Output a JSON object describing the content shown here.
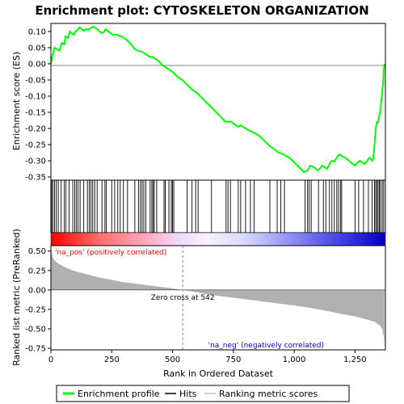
{
  "chart_data": {
    "type": "line",
    "title": "Enrichment plot: CYTOSKELETON ORGANIZATION",
    "xlabel": "Rank in Ordered Dataset",
    "ylabel_top": "Enrichment score (ES)",
    "ylabel_bottom": "Ranked list metric (PreRanked)",
    "x_range": [
      0,
      1375
    ],
    "x_ticks": [
      0,
      250,
      500,
      750,
      1000,
      1250
    ],
    "x_tick_labels": [
      "0",
      "250",
      "500",
      "750",
      "1,000",
      "1,250"
    ],
    "es_ylim": [
      -0.36,
      0.125
    ],
    "es_ticks": [
      0.1,
      0.05,
      0.0,
      -0.05,
      -0.1,
      -0.15,
      -0.2,
      -0.25,
      -0.3,
      -0.35
    ],
    "es_tick_labels": [
      "0.10",
      "0.05",
      "0.00",
      "-0.05",
      "-0.10",
      "-0.15",
      "-0.20",
      "-0.25",
      "-0.30",
      "-0.35"
    ],
    "metric_ylim": [
      -0.77,
      0.57
    ],
    "metric_ticks": [
      0.5,
      0.25,
      0.0,
      -0.25,
      -0.5,
      -0.75
    ],
    "metric_tick_labels": [
      "0.50",
      "0.25",
      "0.00",
      "-0.25",
      "-0.50",
      "-0.75"
    ],
    "zero_cross": 542,
    "zero_cross_label": "Zero cross at 542",
    "pos_label": "'na_pos' (positively correlated)",
    "neg_label": "'na_neg' (negatively correlated)",
    "enrichment_profile": [
      [
        0,
        0.0
      ],
      [
        5,
        0.02
      ],
      [
        10,
        0.035
      ],
      [
        15,
        0.05
      ],
      [
        25,
        0.045
      ],
      [
        35,
        0.04
      ],
      [
        45,
        0.065
      ],
      [
        55,
        0.06
      ],
      [
        60,
        0.085
      ],
      [
        70,
        0.08
      ],
      [
        78,
        0.1
      ],
      [
        85,
        0.095
      ],
      [
        95,
        0.09
      ],
      [
        100,
        0.1
      ],
      [
        110,
        0.105
      ],
      [
        118,
        0.113
      ],
      [
        125,
        0.108
      ],
      [
        135,
        0.102
      ],
      [
        145,
        0.108
      ],
      [
        155,
        0.105
      ],
      [
        165,
        0.112
      ],
      [
        175,
        0.115
      ],
      [
        185,
        0.11
      ],
      [
        200,
        0.1
      ],
      [
        210,
        0.095
      ],
      [
        220,
        0.1
      ],
      [
        225,
        0.107
      ],
      [
        240,
        0.098
      ],
      [
        255,
        0.09
      ],
      [
        270,
        0.09
      ],
      [
        290,
        0.085
      ],
      [
        310,
        0.075
      ],
      [
        330,
        0.06
      ],
      [
        345,
        0.045
      ],
      [
        360,
        0.04
      ],
      [
        375,
        0.037
      ],
      [
        390,
        0.03
      ],
      [
        405,
        0.022
      ],
      [
        420,
        0.02
      ],
      [
        440,
        0.01
      ],
      [
        460,
        -0.005
      ],
      [
        480,
        -0.015
      ],
      [
        500,
        -0.025
      ],
      [
        520,
        -0.04
      ],
      [
        540,
        -0.05
      ],
      [
        560,
        -0.065
      ],
      [
        580,
        -0.08
      ],
      [
        600,
        -0.09
      ],
      [
        620,
        -0.105
      ],
      [
        640,
        -0.12
      ],
      [
        660,
        -0.135
      ],
      [
        680,
        -0.15
      ],
      [
        700,
        -0.165
      ],
      [
        715,
        -0.178
      ],
      [
        730,
        -0.18
      ],
      [
        740,
        -0.178
      ],
      [
        750,
        -0.185
      ],
      [
        760,
        -0.19
      ],
      [
        770,
        -0.195
      ],
      [
        780,
        -0.19
      ],
      [
        800,
        -0.2
      ],
      [
        820,
        -0.208
      ],
      [
        840,
        -0.215
      ],
      [
        860,
        -0.225
      ],
      [
        880,
        -0.24
      ],
      [
        900,
        -0.255
      ],
      [
        920,
        -0.265
      ],
      [
        935,
        -0.275
      ],
      [
        950,
        -0.278
      ],
      [
        965,
        -0.285
      ],
      [
        980,
        -0.29
      ],
      [
        1000,
        -0.305
      ],
      [
        1020,
        -0.32
      ],
      [
        1040,
        -0.335
      ],
      [
        1055,
        -0.33
      ],
      [
        1065,
        -0.315
      ],
      [
        1075,
        -0.318
      ],
      [
        1085,
        -0.322
      ],
      [
        1095,
        -0.33
      ],
      [
        1105,
        -0.325
      ],
      [
        1115,
        -0.315
      ],
      [
        1125,
        -0.32
      ],
      [
        1135,
        -0.325
      ],
      [
        1145,
        -0.31
      ],
      [
        1155,
        -0.3
      ],
      [
        1165,
        -0.302
      ],
      [
        1175,
        -0.29
      ],
      [
        1185,
        -0.28
      ],
      [
        1195,
        -0.285
      ],
      [
        1210,
        -0.29
      ],
      [
        1225,
        -0.3
      ],
      [
        1240,
        -0.31
      ],
      [
        1250,
        -0.315
      ],
      [
        1260,
        -0.305
      ],
      [
        1270,
        -0.3
      ],
      [
        1280,
        -0.305
      ],
      [
        1290,
        -0.31
      ],
      [
        1300,
        -0.3
      ],
      [
        1310,
        -0.29
      ],
      [
        1320,
        -0.3
      ],
      [
        1325,
        -0.295
      ],
      [
        1330,
        -0.25
      ],
      [
        1335,
        -0.2
      ],
      [
        1340,
        -0.18
      ],
      [
        1345,
        -0.18
      ],
      [
        1350,
        -0.16
      ],
      [
        1355,
        -0.14
      ],
      [
        1360,
        -0.1
      ],
      [
        1365,
        -0.06
      ],
      [
        1368,
        -0.02
      ],
      [
        1371,
        0.0
      ]
    ],
    "hits": [
      3,
      8,
      15,
      22,
      30,
      42,
      55,
      62,
      75,
      90,
      98,
      105,
      112,
      120,
      135,
      150,
      158,
      165,
      172,
      180,
      190,
      210,
      222,
      228,
      250,
      262,
      275,
      285,
      298,
      315,
      345,
      360,
      368,
      375,
      382,
      390,
      408,
      415,
      420,
      425,
      435,
      465,
      470,
      485,
      495,
      500,
      505,
      560,
      580,
      595,
      605,
      660,
      720,
      728,
      738,
      770,
      780,
      800,
      820,
      835,
      900,
      930,
      945,
      960,
      1045,
      1055,
      1062,
      1070,
      1100,
      1120,
      1130,
      1145,
      1155,
      1165,
      1175,
      1182,
      1190,
      1195,
      1250,
      1265,
      1285,
      1305,
      1320,
      1330,
      1335,
      1340,
      1345,
      1350,
      1355,
      1362,
      1368
    ],
    "metric_shape": [
      [
        0,
        0.56
      ],
      [
        3,
        0.47
      ],
      [
        8,
        0.42
      ],
      [
        15,
        0.38
      ],
      [
        30,
        0.34
      ],
      [
        60,
        0.29
      ],
      [
        100,
        0.24
      ],
      [
        150,
        0.2
      ],
      [
        200,
        0.16
      ],
      [
        250,
        0.13
      ],
      [
        300,
        0.1
      ],
      [
        350,
        0.08
      ],
      [
        400,
        0.06
      ],
      [
        450,
        0.04
      ],
      [
        500,
        0.02
      ],
      [
        542,
        0.0
      ],
      [
        600,
        -0.03
      ],
      [
        650,
        -0.06
      ],
      [
        700,
        -0.08
      ],
      [
        750,
        -0.1
      ],
      [
        800,
        -0.12
      ],
      [
        850,
        -0.14
      ],
      [
        900,
        -0.16
      ],
      [
        950,
        -0.18
      ],
      [
        1000,
        -0.2
      ],
      [
        1050,
        -0.22
      ],
      [
        1100,
        -0.25
      ],
      [
        1150,
        -0.28
      ],
      [
        1200,
        -0.31
      ],
      [
        1250,
        -0.34
      ],
      [
        1300,
        -0.38
      ],
      [
        1330,
        -0.41
      ],
      [
        1350,
        -0.45
      ],
      [
        1362,
        -0.5
      ],
      [
        1368,
        -0.6
      ],
      [
        1371,
        -0.75
      ]
    ],
    "legend": [
      {
        "label": "Enrichment profile",
        "color": "#00ff00"
      },
      {
        "label": "Hits",
        "color": "#000000"
      },
      {
        "label": "Ranking metric scores",
        "color": "#c0c0c0"
      }
    ],
    "colors": {
      "profile": "#00ff00",
      "hits": "#000000",
      "metric_fill": "#b0b0b0",
      "zero_line": "#808080",
      "pos_label": "#ff0000",
      "neg_label": "#0000cc"
    }
  }
}
